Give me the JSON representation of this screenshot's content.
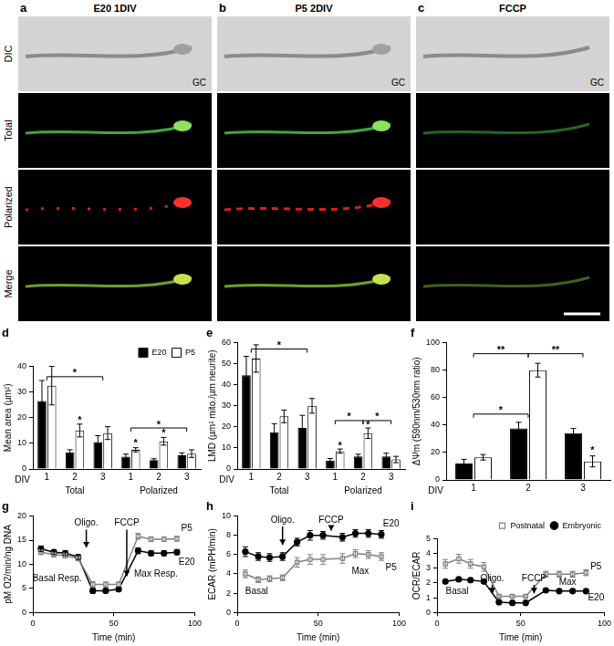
{
  "images": {
    "row_labels": [
      "DIC",
      "Total",
      "Polarized",
      "Merge"
    ],
    "panels": [
      {
        "letter": "a",
        "title": "E20 1DIV",
        "label": "GC"
      },
      {
        "letter": "b",
        "title": "P5 2DIV",
        "label": "GC"
      },
      {
        "letter": "c",
        "title": "FCCP",
        "label": "GC"
      }
    ]
  },
  "chart_data": [
    {
      "type": "bar",
      "title": "d",
      "y_label": "Mean area (µm²)",
      "x_label": "DIV",
      "categories": [
        "1",
        "2",
        "3",
        "1",
        "2",
        "3"
      ],
      "groups": [
        {
          "label": "Total",
          "from": 0,
          "to": 2
        },
        {
          "label": "Polarized",
          "from": 3,
          "to": 5
        }
      ],
      "series": [
        {
          "name": "E20",
          "color": "#000000",
          "values": [
            26.5,
            6.5,
            10.5,
            4.8,
            3.5,
            5.3
          ],
          "errors": [
            8,
            1,
            2.5,
            1,
            0.5,
            1
          ]
        },
        {
          "name": "P5",
          "color": "#ffffff",
          "values": [
            32.5,
            15,
            14,
            7.5,
            10.8,
            6
          ],
          "errors": [
            7.5,
            2.5,
            2.5,
            0.8,
            1.5,
            1.5
          ]
        }
      ],
      "ylim": [
        0,
        40
      ],
      "yticks": [
        0,
        10,
        20,
        30,
        40
      ],
      "grid": false,
      "legend": "upper right",
      "annotations": [
        {
          "text": "*",
          "x": [
            0,
            2
          ],
          "y": 36
        },
        {
          "text": "*",
          "x": 1,
          "series": 1,
          "y": 19
        },
        {
          "text": "*",
          "x": [
            3,
            5
          ],
          "y": 16
        },
        {
          "text": "*",
          "x": 3,
          "series": 1,
          "y": 10
        },
        {
          "text": "*",
          "x": 4,
          "series": 1,
          "y": 14
        }
      ]
    },
    {
      "type": "bar",
      "title": "e",
      "y_label": "LMD (µm² mito./µm neurite)",
      "x_label": "DIV",
      "categories": [
        "1",
        "2",
        "3",
        "1",
        "2",
        "3"
      ],
      "groups": [
        {
          "label": "Total",
          "from": 0,
          "to": 2
        },
        {
          "label": "Polarized",
          "from": 3,
          "to": 5
        }
      ],
      "series": [
        {
          "name": "E20",
          "color": "#000000",
          "values": [
            44.5,
            17.5,
            19.5,
            4,
            6,
            6
          ],
          "errors": [
            9,
            4,
            6,
            1,
            1,
            1.5
          ]
        },
        {
          "name": "P5",
          "color": "#ffffff",
          "values": [
            52.5,
            25,
            30,
            8.5,
            17,
            4.5
          ],
          "errors": [
            6.5,
            3,
            3.5,
            1,
            2.5,
            1.5
          ]
        }
      ],
      "ylim": [
        0,
        60
      ],
      "yticks": [
        0,
        10,
        20,
        30,
        40,
        50,
        60
      ],
      "grid": false,
      "annotations": [
        {
          "text": "*",
          "x": [
            0,
            2
          ],
          "y": 57
        },
        {
          "text": "*",
          "x": [
            3,
            4
          ],
          "y": 23
        },
        {
          "text": "*",
          "x": [
            4,
            5
          ],
          "y": 23
        },
        {
          "text": "*",
          "x": 3,
          "series": 1,
          "y": 11
        },
        {
          "text": "*",
          "x": 4,
          "series": 1,
          "y": 21
        }
      ]
    },
    {
      "type": "bar",
      "title": "f",
      "y_label": "ΔΨm (590nm/530nm ratio)",
      "x_label": "DIV",
      "categories": [
        "1",
        "2",
        "3"
      ],
      "series": [
        {
          "name": "E20",
          "color": "#000000",
          "values": [
            12,
            37.5,
            34
          ],
          "errors": [
            3,
            4.5,
            3.5
          ]
        },
        {
          "name": "P5",
          "color": "#ffffff",
          "values": [
            16.5,
            80,
            13.5
          ],
          "errors": [
            2,
            5,
            4
          ]
        }
      ],
      "ylim": [
        0,
        100
      ],
      "yticks": [
        0,
        20,
        40,
        60,
        80,
        100
      ],
      "grid": false,
      "annotations": [
        {
          "text": "*",
          "x": [
            0,
            1
          ],
          "y": 48
        },
        {
          "text": "**",
          "x": [
            0,
            1
          ],
          "y": 92
        },
        {
          "text": "**",
          "x": [
            1,
            2
          ],
          "y": 92
        },
        {
          "text": "*",
          "x": 2,
          "series": 1,
          "y": 21
        }
      ]
    },
    {
      "type": "line",
      "title": "g",
      "y_label": "pM O2/min/ng DNA",
      "x_label": "Time (min)",
      "x": [
        5,
        13,
        20,
        28,
        37,
        45,
        53,
        65,
        73,
        81,
        89
      ],
      "series": [
        {
          "name": "P5",
          "color": "#808080",
          "marker": "open_square",
          "line_style": "solid",
          "values": [
            12.5,
            12,
            11.8,
            11.2,
            5.8,
            5.8,
            5.8,
            15.8,
            15.2,
            15.2,
            15.3
          ],
          "errors": [
            0.5,
            0.5,
            0.5,
            0.5,
            0.6,
            0.5,
            0.5,
            0.6,
            0.5,
            0.5,
            0.5
          ]
        },
        {
          "name": "E20",
          "color": "#000000",
          "marker": "circle",
          "line_style": "solid",
          "values": [
            13.2,
            12.5,
            12.3,
            11.5,
            4.5,
            4.5,
            4.8,
            12.8,
            12.3,
            12.3,
            12.5
          ],
          "errors": [
            0.6,
            0.5,
            0.5,
            0.5,
            0.5,
            0.4,
            0.4,
            0.6,
            0.5,
            0.5,
            0.5
          ]
        }
      ],
      "xlim": [
        0,
        100
      ],
      "xticks": [
        0,
        50,
        100
      ],
      "ylim": [
        0,
        20
      ],
      "yticks": [
        0,
        5,
        10,
        15,
        20
      ],
      "grid": false,
      "annotations": [
        {
          "text": "Oligo.",
          "x": 33,
          "y": 18.5,
          "arrow_to": 13.5
        },
        {
          "text": "FCCP",
          "x": 58,
          "y": 18.5,
          "arrow_to": 7.5
        },
        {
          "text": "Basal Resp.",
          "x": 15,
          "y": 7
        },
        {
          "text": "Max Resp.",
          "x": 76,
          "y": 8
        },
        {
          "text": "P5",
          "x": 95,
          "y": 17.5
        },
        {
          "text": "E20",
          "x": 95,
          "y": 10.5
        }
      ]
    },
    {
      "type": "line",
      "title": "h",
      "y_label": "ECAR (mPH/min)",
      "x_label": "Time (min)",
      "x": [
        5,
        13,
        20,
        28,
        37,
        45,
        53,
        65,
        73,
        81,
        89
      ],
      "series": [
        {
          "name": "E20",
          "color": "#000000",
          "marker": "circle",
          "line_style": "solid",
          "values": [
            6.3,
            5.8,
            5.7,
            5.8,
            7.3,
            8.0,
            8.0,
            7.8,
            8.2,
            8.2,
            8.1
          ],
          "errors": [
            0.5,
            0.4,
            0.4,
            0.4,
            0.4,
            0.5,
            0.4,
            0.4,
            0.4,
            0.4,
            0.4
          ]
        },
        {
          "name": "P5",
          "color": "#808080",
          "marker": "open_square",
          "line_style": "solid",
          "values": [
            4.0,
            3.4,
            3.5,
            3.6,
            5.2,
            5.5,
            5.5,
            5.6,
            6.1,
            6.0,
            5.8
          ],
          "errors": [
            0.4,
            0.3,
            0.3,
            0.3,
            0.5,
            0.5,
            0.5,
            0.5,
            0.4,
            0.4,
            0.4
          ]
        }
      ],
      "xlim": [
        0,
        100
      ],
      "xticks": [
        0,
        50,
        100
      ],
      "ylim": [
        0,
        10
      ],
      "yticks": [
        0,
        2,
        4,
        6,
        8,
        10
      ],
      "grid": false,
      "annotations": [
        {
          "text": "Oligo.",
          "x": 28,
          "y": 9.6,
          "arrow_to": 7
        },
        {
          "text": "FCCP",
          "x": 58,
          "y": 9.6,
          "arrow_to": 8.5
        },
        {
          "text": "Basal",
          "x": 12,
          "y": 2.2
        },
        {
          "text": "Max",
          "x": 76,
          "y": 4.3
        },
        {
          "text": "E20",
          "x": 95,
          "y": 9.2
        },
        {
          "text": "P5",
          "x": 95,
          "y": 4.6
        }
      ]
    },
    {
      "type": "line",
      "title": "i",
      "y_label": "OCR/ECAR",
      "x_label": "Time (min)",
      "x": [
        5,
        13,
        20,
        28,
        37,
        45,
        53,
        65,
        73,
        81,
        89
      ],
      "series": [
        {
          "name": "Postnatal",
          "color": "#808080",
          "marker": "open_square",
          "line_style": "solid",
          "values": [
            3.3,
            3.65,
            3.3,
            3.1,
            1.1,
            1.1,
            1.1,
            2.6,
            2.6,
            2.6,
            2.7
          ],
          "errors": [
            0.3,
            0.3,
            0.3,
            0.3,
            0.1,
            0.1,
            0.1,
            0.2,
            0.2,
            0.2,
            0.2
          ]
        },
        {
          "name": "Embryonic",
          "color": "#000000",
          "marker": "circle",
          "line_style": "solid",
          "values": [
            2.1,
            2.25,
            2.2,
            2.1,
            0.7,
            0.65,
            0.65,
            1.5,
            1.45,
            1.45,
            1.45
          ],
          "errors": [
            0.1,
            0.1,
            0.1,
            0.1,
            0.05,
            0.05,
            0.05,
            0.1,
            0.1,
            0.1,
            0.1
          ]
        }
      ],
      "xlim": [
        0,
        100
      ],
      "xticks": [
        0,
        50,
        100
      ],
      "ylim": [
        0,
        5
      ],
      "yticks": [
        0,
        1,
        2,
        3,
        4,
        5
      ],
      "grid": false,
      "legend": "upper right",
      "annotations": [
        {
          "text": "Oligo.",
          "x": 33,
          "y": 2.3,
          "arrow_to": 1.3
        },
        {
          "text": "FCCP",
          "x": 58,
          "y": 2.3,
          "arrow_to": 1.3
        },
        {
          "text": "Basal",
          "x": 12,
          "y": 1.4
        },
        {
          "text": "Max",
          "x": 78,
          "y": 2.05
        },
        {
          "text": "P5",
          "x": 95,
          "y": 3.1
        },
        {
          "text": "E20",
          "x": 95,
          "y": 1.0
        }
      ]
    }
  ]
}
